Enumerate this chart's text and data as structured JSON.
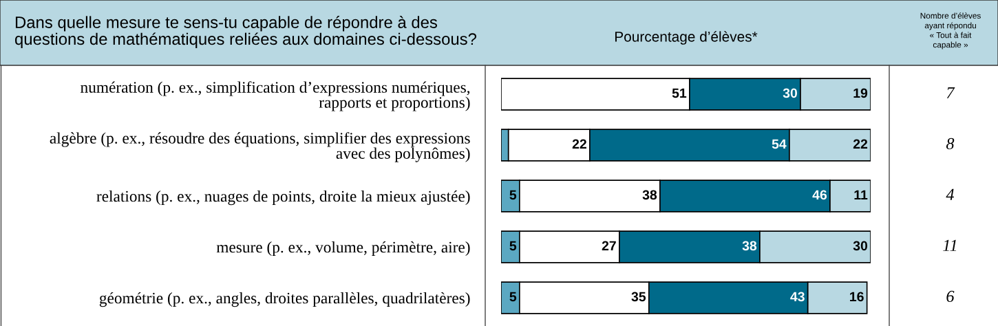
{
  "chart_data": [
    {
      "type": "bar",
      "orientation": "horizontal",
      "stacked": true,
      "title": "Dans quelle mesure te sens-tu capable de répondre à des\nquestions de mathématiques reliées aux domaines ci-dessous?",
      "xlabel": "Pourcentage d’élèves*",
      "categories": [
        "numération (p. ex., simplification d’expressions numériques,\nrapports et proportions)",
        "algèbre (p. ex., résoudre des équations, simplifier des expressions\navec des polynômes)",
        "relations (p. ex., nuages de points, droite la mieux ajustée)",
        "mesure (p. ex., volume, périmètre, aire)",
        "géométrie (p. ex., angles, droites parallèles, quadrilatères)"
      ],
      "series": [
        {
          "color": "#5ba8c2",
          "values": [
            null,
            2,
            5,
            5,
            5
          ],
          "value_labels": [
            null,
            null,
            "5",
            "5",
            "5"
          ]
        },
        {
          "color": "#ffffff",
          "values": [
            51,
            22,
            38,
            27,
            35
          ],
          "value_labels": [
            "51",
            "22",
            "38",
            "27",
            "35"
          ]
        },
        {
          "color": "#006a8a",
          "values": [
            30,
            54,
            46,
            38,
            43
          ],
          "value_labels": [
            "30",
            "54",
            "46",
            "38",
            "43"
          ]
        },
        {
          "color": "#b8d8e2",
          "values": [
            19,
            22,
            11,
            30,
            16
          ],
          "value_labels": [
            "19",
            "22",
            "11",
            "30",
            "16"
          ]
        }
      ],
      "xlim": [
        0,
        100
      ],
      "tick_labels": "y"
    },
    {
      "type": "other",
      "title": "Nombre d’élèves\nayant répondu\n« Tout à fait\ncapable »",
      "values": [
        7,
        8,
        4,
        11,
        6
      ],
      "data_labels": true
    }
  ]
}
